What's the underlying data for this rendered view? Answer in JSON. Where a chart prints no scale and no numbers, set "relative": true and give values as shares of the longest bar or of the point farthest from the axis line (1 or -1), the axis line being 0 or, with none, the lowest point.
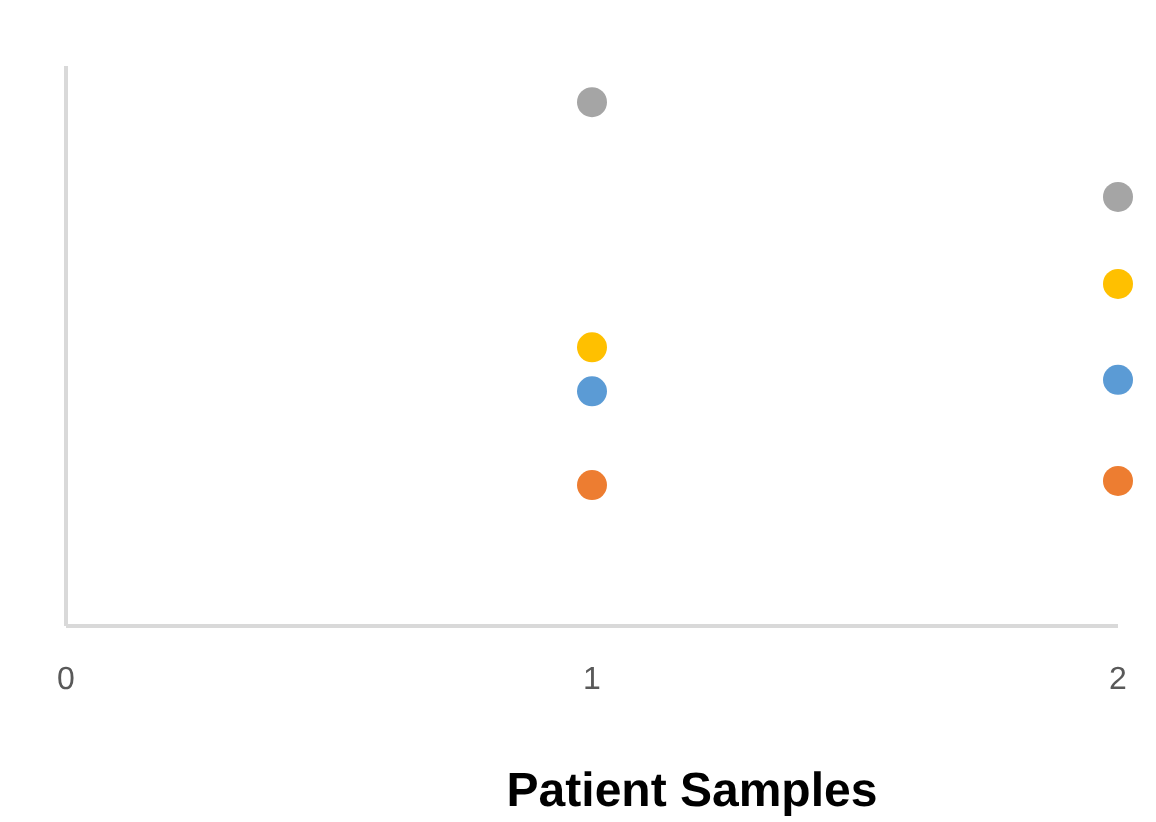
{
  "chart_data": {
    "type": "scatter",
    "relative": true,
    "xlabel": "Patient Samples",
    "x": [
      1,
      2
    ],
    "xlim": [
      0,
      2
    ],
    "xticks": [
      0,
      1,
      2
    ],
    "tick_labels": "x",
    "grid": false,
    "legend": false,
    "marker": "circle",
    "series": [
      {
        "color": "#5b9bd5",
        "values": [
          0.448,
          0.47
        ]
      },
      {
        "color": "#ed7d31",
        "values": [
          0.269,
          0.277
        ]
      },
      {
        "color": "#a5a5a5",
        "values": [
          1,
          0.819
        ]
      },
      {
        "color": "#ffc000",
        "values": [
          0.532,
          0.653
        ]
      }
    ]
  }
}
